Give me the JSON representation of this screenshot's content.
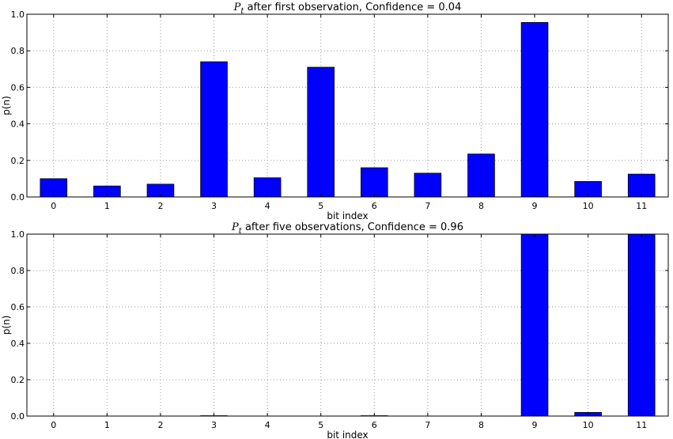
{
  "chart_data": [
    {
      "type": "bar",
      "title_symbol": "P",
      "title_subscript": "t",
      "title": "after first observation, Confidence = 0.04",
      "xlabel": "bit index",
      "ylabel": "p(n)",
      "categories": [
        "0",
        "1",
        "2",
        "3",
        "4",
        "5",
        "6",
        "7",
        "8",
        "9",
        "10",
        "11"
      ],
      "values": [
        0.1,
        0.06,
        0.07,
        0.74,
        0.105,
        0.71,
        0.16,
        0.13,
        0.235,
        0.955,
        0.085,
        0.125
      ],
      "ylim": [
        0,
        1.0
      ],
      "yticks": [
        "0.0",
        "0.2",
        "0.4",
        "0.6",
        "0.8",
        "1.0"
      ],
      "grid": true,
      "bar_color": "#0000ff"
    },
    {
      "type": "bar",
      "title_symbol": "P",
      "title_subscript": "t",
      "title": "after five observations, Confidence = 0.96",
      "xlabel": "bit index",
      "ylabel": "p(n)",
      "categories": [
        "0",
        "1",
        "2",
        "3",
        "4",
        "5",
        "6",
        "7",
        "8",
        "9",
        "10",
        "11"
      ],
      "values": [
        0,
        0,
        0,
        0.002,
        0,
        0,
        0.002,
        0,
        0,
        1.0,
        0.02,
        1.0
      ],
      "ylim": [
        0,
        1.0
      ],
      "yticks": [
        "0.0",
        "0.2",
        "0.4",
        "0.6",
        "0.8",
        "1.0"
      ],
      "grid": true,
      "bar_color": "#0000ff"
    }
  ]
}
